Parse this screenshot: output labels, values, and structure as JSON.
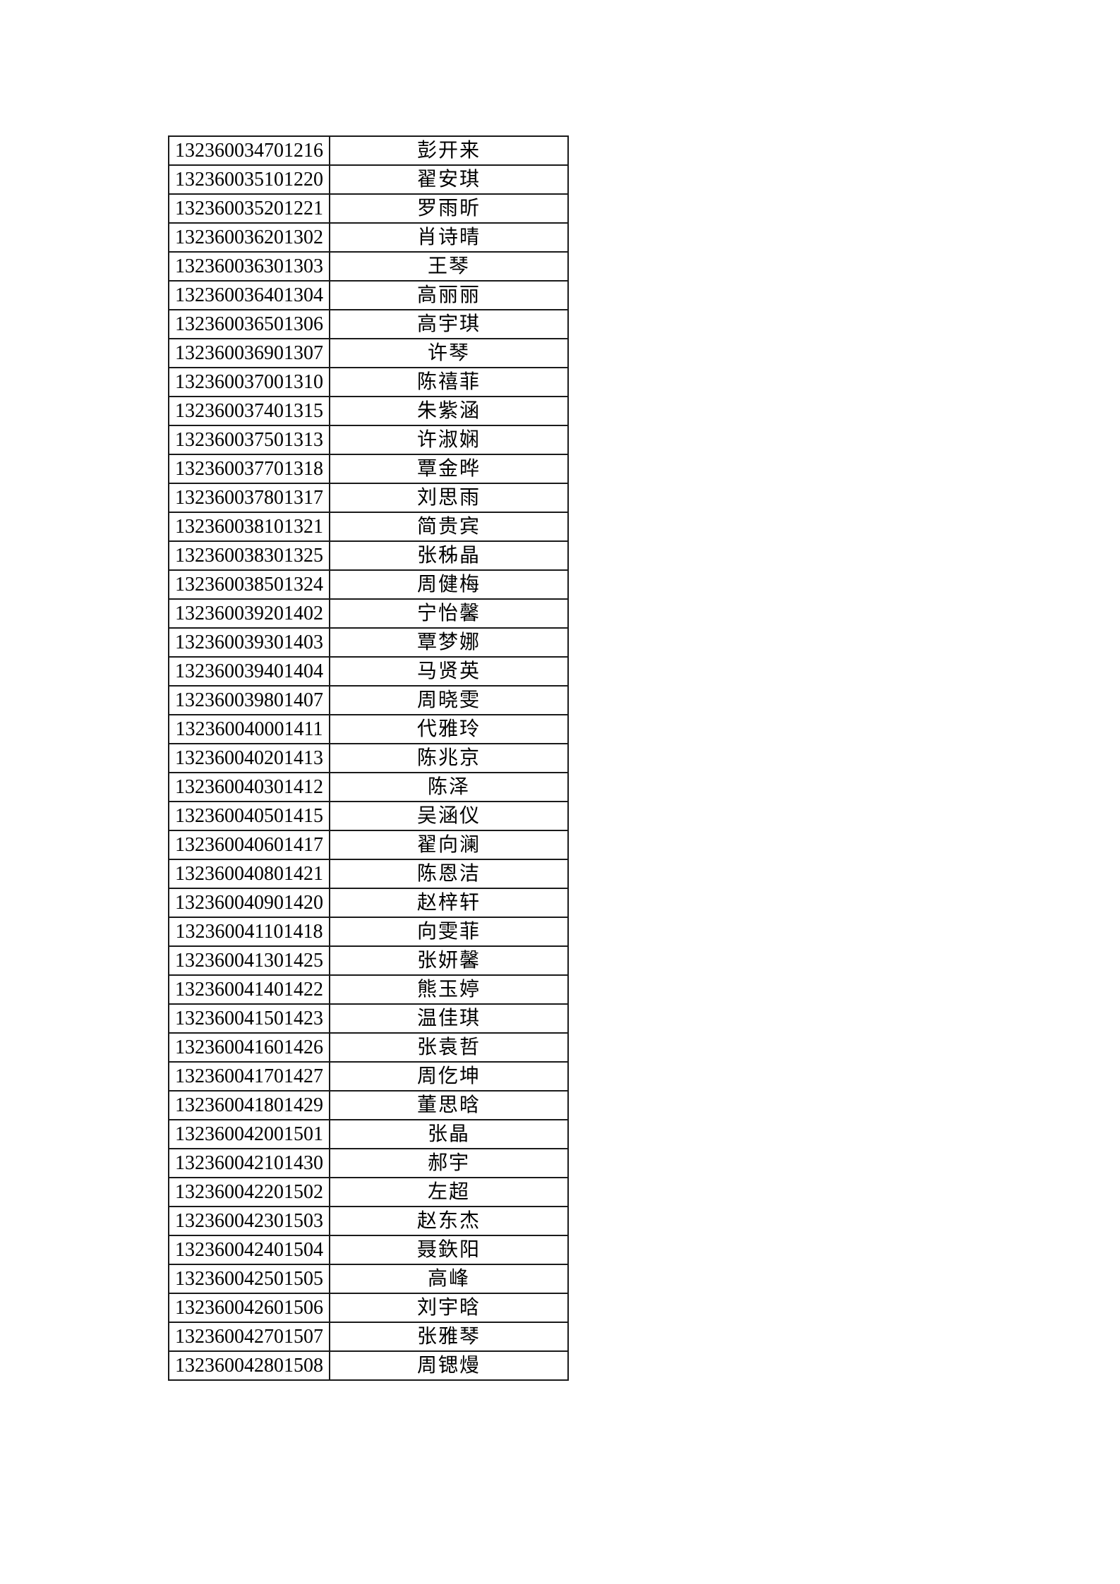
{
  "page": {
    "background_color": "#ffffff",
    "border_color": "#1a1a1a"
  },
  "table": {
    "columns": [
      {
        "key": "exam_number",
        "label": ""
      },
      {
        "key": "name",
        "label": ""
      }
    ],
    "rows": [
      {
        "exam_number": "132360034701216",
        "name": "彭开来"
      },
      {
        "exam_number": "132360035101220",
        "name": "翟安琪"
      },
      {
        "exam_number": "132360035201221",
        "name": "罗雨昕"
      },
      {
        "exam_number": "132360036201302",
        "name": "肖诗晴"
      },
      {
        "exam_number": "132360036301303",
        "name": "王琴"
      },
      {
        "exam_number": "132360036401304",
        "name": "高丽丽"
      },
      {
        "exam_number": "132360036501306",
        "name": "高宇琪"
      },
      {
        "exam_number": "132360036901307",
        "name": "许琴"
      },
      {
        "exam_number": "132360037001310",
        "name": "陈禧菲"
      },
      {
        "exam_number": "132360037401315",
        "name": "朱紫涵"
      },
      {
        "exam_number": "132360037501313",
        "name": "许淑娴"
      },
      {
        "exam_number": "132360037701318",
        "name": "覃金晔"
      },
      {
        "exam_number": "132360037801317",
        "name": "刘思雨"
      },
      {
        "exam_number": "132360038101321",
        "name": "简贵宾"
      },
      {
        "exam_number": "132360038301325",
        "name": "张秭晶"
      },
      {
        "exam_number": "132360038501324",
        "name": "周健梅"
      },
      {
        "exam_number": "132360039201402",
        "name": "宁怡馨"
      },
      {
        "exam_number": "132360039301403",
        "name": "覃梦娜"
      },
      {
        "exam_number": "132360039401404",
        "name": "马贤英"
      },
      {
        "exam_number": "132360039801407",
        "name": "周晓雯"
      },
      {
        "exam_number": "132360040001411",
        "name": "代雅玲"
      },
      {
        "exam_number": "132360040201413",
        "name": "陈兆京"
      },
      {
        "exam_number": "132360040301412",
        "name": "陈泽"
      },
      {
        "exam_number": "132360040501415",
        "name": "吴涵仪"
      },
      {
        "exam_number": "132360040601417",
        "name": "翟向澜"
      },
      {
        "exam_number": "132360040801421",
        "name": "陈恩洁"
      },
      {
        "exam_number": "132360040901420",
        "name": "赵梓轩"
      },
      {
        "exam_number": "132360041101418",
        "name": "向雯菲"
      },
      {
        "exam_number": "132360041301425",
        "name": "张妍馨"
      },
      {
        "exam_number": "132360041401422",
        "name": "熊玉婷"
      },
      {
        "exam_number": "132360041501423",
        "name": "温佳琪"
      },
      {
        "exam_number": "132360041601426",
        "name": "张袁哲"
      },
      {
        "exam_number": "132360041701427",
        "name": "周仡坤"
      },
      {
        "exam_number": "132360041801429",
        "name": "董思晗"
      },
      {
        "exam_number": "132360042001501",
        "name": "张晶"
      },
      {
        "exam_number": "132360042101430",
        "name": "郝宇"
      },
      {
        "exam_number": "132360042201502",
        "name": "左超"
      },
      {
        "exam_number": "132360042301503",
        "name": "赵东杰"
      },
      {
        "exam_number": "132360042401504",
        "name": "聂鉃阳"
      },
      {
        "exam_number": "132360042501505",
        "name": "高峰"
      },
      {
        "exam_number": "132360042601506",
        "name": "刘宇晗"
      },
      {
        "exam_number": "132360042701507",
        "name": "张雅琴"
      },
      {
        "exam_number": "132360042801508",
        "name": "周锶熳"
      }
    ]
  }
}
